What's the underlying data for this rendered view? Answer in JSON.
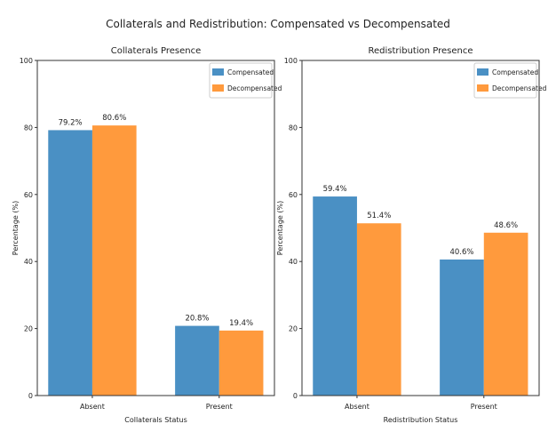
{
  "chart_data": {
    "title": "Collaterals and Redistribution: Compensated vs Decompensated",
    "colors": {
      "Compensated": "#4a90c4",
      "Decompensated": "#ff9a3d"
    },
    "panels": [
      {
        "type": "bar",
        "title": "Collaterals Presence",
        "xlabel": "Collaterals Status",
        "ylabel": "Percentage (%)",
        "categories": [
          "Absent",
          "Present"
        ],
        "ylim": [
          0,
          100
        ],
        "yticks": [
          "0",
          "20",
          "40",
          "60",
          "80",
          "100"
        ],
        "legend": "top-right",
        "series": [
          {
            "name": "Compensated",
            "values": [
              79.2,
              20.8
            ],
            "labels": [
              "79.2%",
              "20.8%"
            ]
          },
          {
            "name": "Decompensated",
            "values": [
              80.6,
              19.4
            ],
            "labels": [
              "80.6%",
              "19.4%"
            ]
          }
        ]
      },
      {
        "type": "bar",
        "title": "Redistribution Presence",
        "xlabel": "Redistribution Status",
        "ylabel": "Percentage (%)",
        "categories": [
          "Absent",
          "Present"
        ],
        "ylim": [
          0,
          100
        ],
        "yticks": [
          "0",
          "20",
          "40",
          "60",
          "80",
          "100"
        ],
        "legend": "top-right",
        "series": [
          {
            "name": "Compensated",
            "values": [
              59.4,
              40.6
            ],
            "labels": [
              "59.4%",
              "40.6%"
            ]
          },
          {
            "name": "Decompensated",
            "values": [
              51.4,
              48.6
            ],
            "labels": [
              "51.4%",
              "48.6%"
            ]
          }
        ]
      }
    ]
  }
}
